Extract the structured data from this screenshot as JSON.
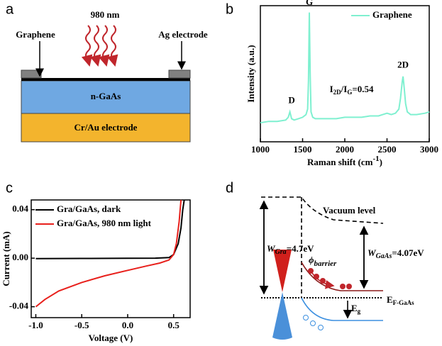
{
  "panel_labels": [
    "a",
    "b",
    "c",
    "d"
  ],
  "diagram_a": {
    "light": "980 nm",
    "graphene": "Graphene",
    "ag_electrode": "Ag electrode",
    "layer_top": "n-GaAs",
    "layer_bottom": "Cr/Au electrode"
  },
  "diagram_d": {
    "vacuum": "Vacuum level",
    "w_gra": [
      "W",
      "Gra",
      "=4.7eV"
    ],
    "w_gaas": [
      "W",
      "GaAs",
      "=4.07eV"
    ],
    "barrier": [
      "ϕ",
      "barrier"
    ],
    "fermi": [
      "E",
      "F-GaAs"
    ],
    "gap": [
      "E",
      "g"
    ]
  },
  "chart_data": [
    {
      "type": "line",
      "xlabel": [
        "Raman shift (cm",
        "-1",
        ")"
      ],
      "ylabel": "Intensity (a.u.)",
      "annotations": [
        "D",
        "G",
        "2D"
      ],
      "ratio_label": [
        "I",
        "2D",
        "/I",
        "G",
        "=0.54"
      ],
      "xlim": [
        1000,
        3000
      ],
      "ylim": [
        0,
        100
      ],
      "xticks": [
        1000,
        1500,
        2000,
        2500,
        3000
      ],
      "legend": "upper right",
      "x": [
        1000,
        1100,
        1200,
        1300,
        1330,
        1350,
        1370,
        1400,
        1450,
        1500,
        1540,
        1560,
        1570,
        1580,
        1590,
        1600,
        1620,
        1650,
        1700,
        1800,
        1900,
        2000,
        2100,
        2200,
        2300,
        2400,
        2450,
        2500,
        2550,
        2600,
        2640,
        2660,
        2680,
        2690,
        2700,
        2720,
        2740,
        2780,
        2850,
        2950,
        3000
      ],
      "series": [
        {
          "name": "Graphene",
          "color": "#7ff0d0",
          "values": [
            14,
            15,
            15,
            16,
            18,
            22,
            17,
            16,
            17,
            18,
            20,
            24,
            45,
            95,
            50,
            22,
            18,
            17,
            17,
            17,
            17,
            18,
            18,
            18,
            19,
            19,
            20,
            21,
            20,
            21,
            24,
            32,
            44,
            48,
            42,
            28,
            22,
            20,
            20,
            21,
            22
          ]
        }
      ]
    },
    {
      "type": "line",
      "xlabel": "Voltage (V)",
      "ylabel": "Current (mA)",
      "xlim": [
        -1.05,
        0.68
      ],
      "ylim": [
        -0.049,
        0.048
      ],
      "legend": "upper left",
      "xticks": [
        {
          "value": -1,
          "label": "-1.0"
        },
        {
          "value": -0.5,
          "label": "-0.5"
        },
        {
          "value": 0,
          "label": "0.0"
        },
        {
          "value": 0.5,
          "label": "0.5"
        }
      ],
      "yticks": [
        {
          "value": 0.04,
          "label": "0.04"
        },
        {
          "value": 0,
          "label": "0.00"
        },
        {
          "value": -0.04,
          "label": "-0.04"
        }
      ],
      "series": [
        {
          "name": "Gra/GaAs, dark",
          "color": "#000000",
          "x": [
            -1,
            -0.5,
            0,
            0.3,
            0.45,
            0.5,
            0.55,
            0.58,
            0.6,
            0.62
          ],
          "values": [
            -0.0003,
            -0.0002,
            -0.0001,
            0,
            0.0005,
            0.003,
            0.012,
            0.025,
            0.04,
            0.05
          ]
        },
        {
          "name": "Gra/GaAs, 980 nm light",
          "color": "#e8201c",
          "x": [
            -1,
            -0.9,
            -0.75,
            -0.5,
            -0.25,
            0,
            0.2,
            0.35,
            0.45,
            0.5,
            0.53,
            0.56,
            0.58
          ],
          "values": [
            -0.04,
            -0.034,
            -0.027,
            -0.02,
            -0.0145,
            -0.01,
            -0.0065,
            -0.004,
            -0.0015,
            0.003,
            0.012,
            0.03,
            0.048
          ]
        }
      ]
    }
  ]
}
